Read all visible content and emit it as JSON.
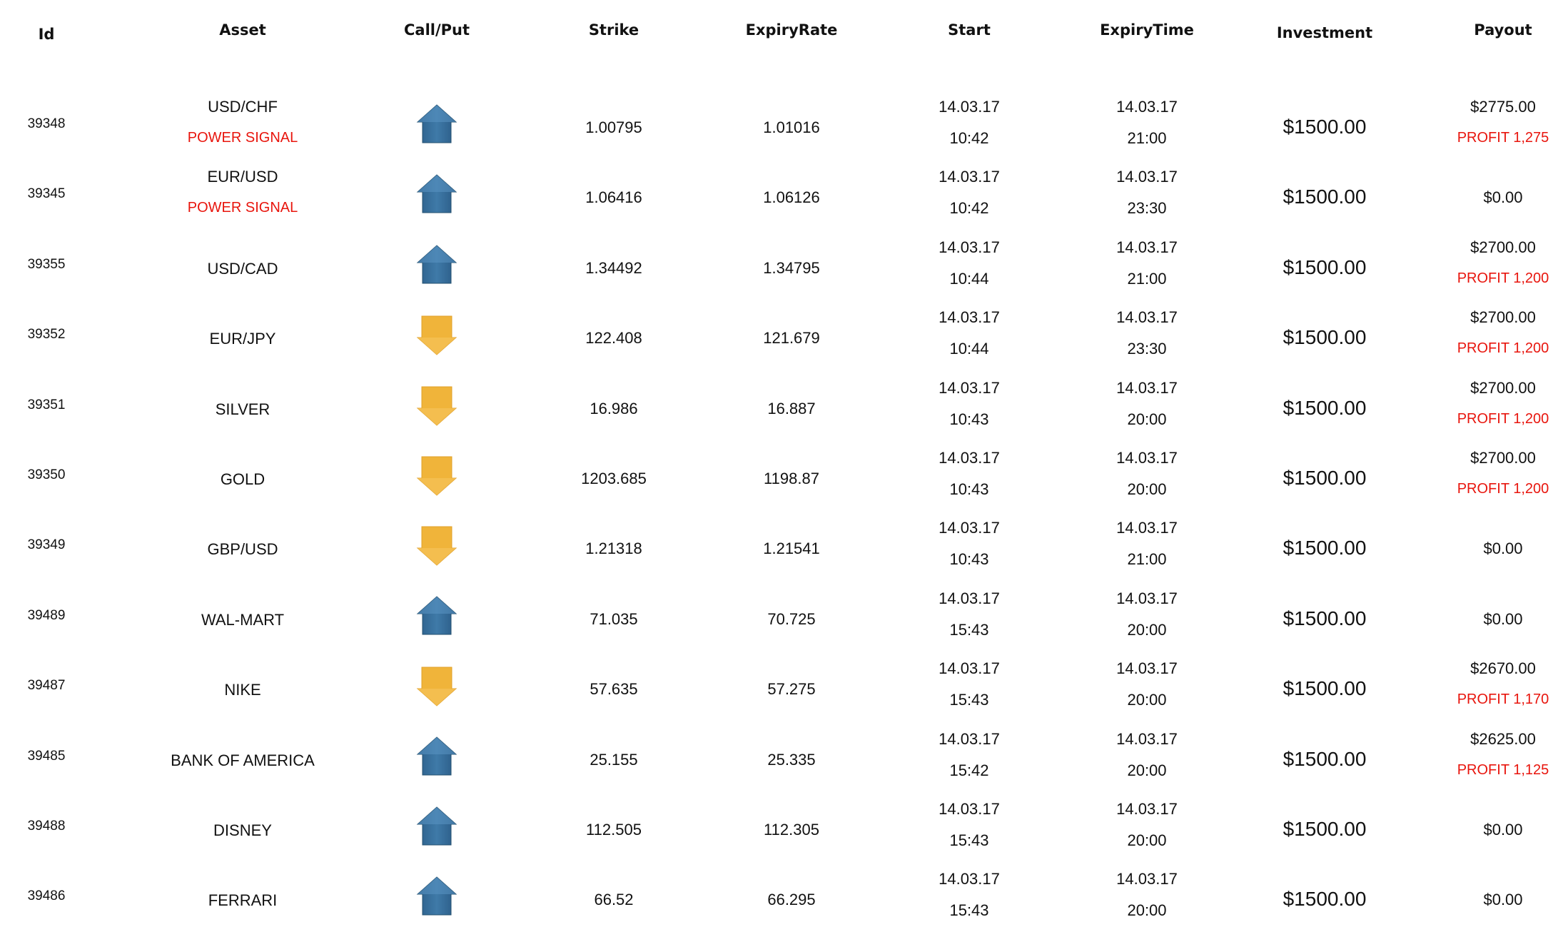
{
  "headers": {
    "id": "Id",
    "asset": "Asset",
    "call_put": "Call/Put",
    "strike": "Strike",
    "expiry_rate": "ExpiryRate",
    "start": "Start",
    "expiry_time": "ExpiryTime",
    "investment": "Investment",
    "payout": "Payout"
  },
  "colors": {
    "call_arrow": "#3f7aa8",
    "put_arrow": "#f0b43a",
    "signal_text": "#e8150d",
    "profit_text": "#e8150d"
  },
  "rows": [
    {
      "id": "39348",
      "asset": "USD/CHF",
      "signal": "POWER SIGNAL",
      "direction": "call",
      "direction_icon": "up-arrow-icon",
      "strike": "1.00795",
      "expiry_rate": "1.01016",
      "start_date": "14.03.17",
      "start_time": "10:42",
      "expiry_date": "14.03.17",
      "expiry_time": "21:00",
      "investment": "$1500.00",
      "payout": "$2775.00",
      "profit": "PROFIT 1,275"
    },
    {
      "id": "39345",
      "asset": "EUR/USD",
      "signal": "POWER SIGNAL",
      "direction": "call",
      "direction_icon": "up-arrow-icon",
      "strike": "1.06416",
      "expiry_rate": "1.06126",
      "start_date": "14.03.17",
      "start_time": "10:42",
      "expiry_date": "14.03.17",
      "expiry_time": "23:30",
      "investment": "$1500.00",
      "payout": "$0.00",
      "profit": ""
    },
    {
      "id": "39355",
      "asset": "USD/CAD",
      "signal": "",
      "direction": "call",
      "direction_icon": "up-arrow-icon",
      "strike": "1.34492",
      "expiry_rate": "1.34795",
      "start_date": "14.03.17",
      "start_time": "10:44",
      "expiry_date": "14.03.17",
      "expiry_time": "21:00",
      "investment": "$1500.00",
      "payout": "$2700.00",
      "profit": "PROFIT 1,200"
    },
    {
      "id": "39352",
      "asset": "EUR/JPY",
      "signal": "",
      "direction": "put",
      "direction_icon": "down-arrow-icon",
      "strike": "122.408",
      "expiry_rate": "121.679",
      "start_date": "14.03.17",
      "start_time": "10:44",
      "expiry_date": "14.03.17",
      "expiry_time": "23:30",
      "investment": "$1500.00",
      "payout": "$2700.00",
      "profit": "PROFIT 1,200"
    },
    {
      "id": "39351",
      "asset": "SILVER",
      "signal": "",
      "direction": "put",
      "direction_icon": "down-arrow-icon",
      "strike": "16.986",
      "expiry_rate": "16.887",
      "start_date": "14.03.17",
      "start_time": "10:43",
      "expiry_date": "14.03.17",
      "expiry_time": "20:00",
      "investment": "$1500.00",
      "payout": "$2700.00",
      "profit": "PROFIT 1,200"
    },
    {
      "id": "39350",
      "asset": "GOLD",
      "signal": "",
      "direction": "put",
      "direction_icon": "down-arrow-icon",
      "strike": "1203.685",
      "expiry_rate": "1198.87",
      "start_date": "14.03.17",
      "start_time": "10:43",
      "expiry_date": "14.03.17",
      "expiry_time": "20:00",
      "investment": "$1500.00",
      "payout": "$2700.00",
      "profit": "PROFIT 1,200"
    },
    {
      "id": "39349",
      "asset": "GBP/USD",
      "signal": "",
      "direction": "put",
      "direction_icon": "down-arrow-icon",
      "strike": "1.21318",
      "expiry_rate": "1.21541",
      "start_date": "14.03.17",
      "start_time": "10:43",
      "expiry_date": "14.03.17",
      "expiry_time": "21:00",
      "investment": "$1500.00",
      "payout": "$0.00",
      "profit": ""
    },
    {
      "id": "39489",
      "asset": "WAL-MART",
      "signal": "",
      "direction": "call",
      "direction_icon": "up-arrow-icon",
      "strike": "71.035",
      "expiry_rate": "70.725",
      "start_date": "14.03.17",
      "start_time": "15:43",
      "expiry_date": "14.03.17",
      "expiry_time": "20:00",
      "investment": "$1500.00",
      "payout": "$0.00",
      "profit": ""
    },
    {
      "id": "39487",
      "asset": "NIKE",
      "signal": "",
      "direction": "put",
      "direction_icon": "down-arrow-icon",
      "strike": "57.635",
      "expiry_rate": "57.275",
      "start_date": "14.03.17",
      "start_time": "15:43",
      "expiry_date": "14.03.17",
      "expiry_time": "20:00",
      "investment": "$1500.00",
      "payout": "$2670.00",
      "profit": "PROFIT 1,170"
    },
    {
      "id": "39485",
      "asset": "BANK OF AMERICA",
      "signal": "",
      "direction": "call",
      "direction_icon": "up-arrow-icon",
      "strike": "25.155",
      "expiry_rate": "25.335",
      "start_date": "14.03.17",
      "start_time": "15:42",
      "expiry_date": "14.03.17",
      "expiry_time": "20:00",
      "investment": "$1500.00",
      "payout": "$2625.00",
      "profit": "PROFIT 1,125"
    },
    {
      "id": "39488",
      "asset": "DISNEY",
      "signal": "",
      "direction": "call",
      "direction_icon": "up-arrow-icon",
      "strike": "112.505",
      "expiry_rate": "112.305",
      "start_date": "14.03.17",
      "start_time": "15:43",
      "expiry_date": "14.03.17",
      "expiry_time": "20:00",
      "investment": "$1500.00",
      "payout": "$0.00",
      "profit": ""
    },
    {
      "id": "39486",
      "asset": "FERRARI",
      "signal": "",
      "direction": "call",
      "direction_icon": "up-arrow-icon",
      "strike": "66.52",
      "expiry_rate": "66.295",
      "start_date": "14.03.17",
      "start_time": "15:43",
      "expiry_date": "14.03.17",
      "expiry_time": "20:00",
      "investment": "$1500.00",
      "payout": "$0.00",
      "profit": ""
    }
  ]
}
